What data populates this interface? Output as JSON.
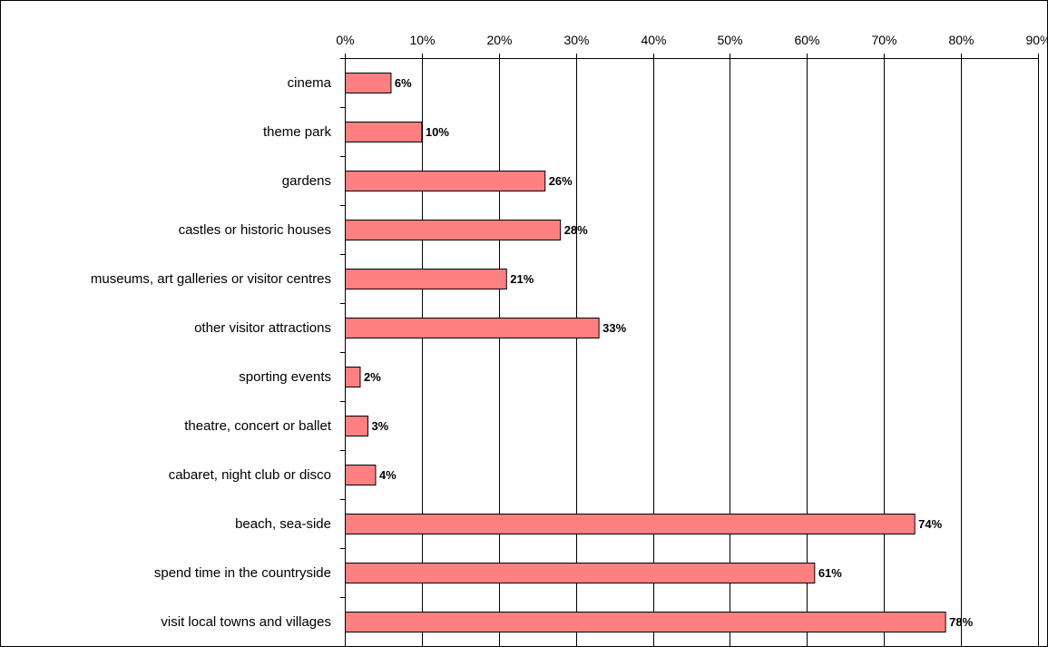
{
  "chart_data": {
    "type": "bar",
    "orientation": "horizontal",
    "title": "",
    "xlabel": "",
    "ylabel": "",
    "categories": [
      "cinema",
      "theme park",
      "gardens",
      "castles or historic houses",
      "museums, art galleries or visitor centres",
      "other visitor attractions",
      "sporting events",
      "theatre, concert or ballet",
      "cabaret, night club or disco",
      "beach, sea-side",
      "spend time in the countryside",
      "visit local towns and villages"
    ],
    "values": [
      6,
      10,
      26,
      28,
      21,
      33,
      2,
      3,
      4,
      74,
      61,
      78
    ],
    "value_labels": [
      "6%",
      "10%",
      "26%",
      "28%",
      "21%",
      "33%",
      "2%",
      "3%",
      "4%",
      "74%",
      "61%",
      "78%"
    ],
    "x_ticks": [
      "0%",
      "10%",
      "20%",
      "30%",
      "40%",
      "50%",
      "60%",
      "70%",
      "80%",
      "90%"
    ],
    "xlim": [
      0,
      90
    ],
    "x_axis_position": "top",
    "grid": "vertical",
    "legend": "none",
    "bar_color": "#ff8080",
    "bar_border_color": "#000000"
  }
}
